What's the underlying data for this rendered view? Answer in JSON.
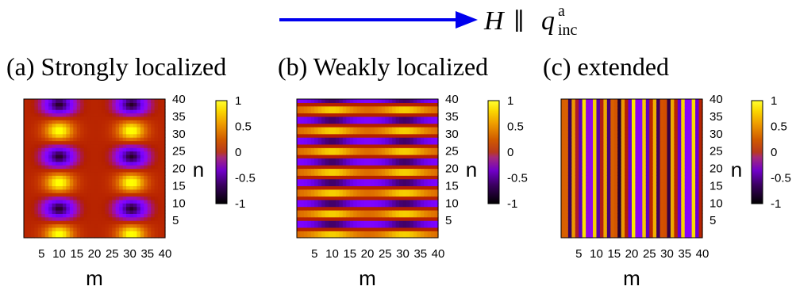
{
  "header": {
    "arrow_color": "#0000ee",
    "field_symbol": "H",
    "parallel_symbol": "∥",
    "q_symbol": "q",
    "q_superscript": "a",
    "q_subscript": "inc"
  },
  "colorbar": {
    "ticks": [
      "1",
      "0.5",
      "0",
      "-0.5",
      "-1"
    ],
    "min": -1,
    "max": 1,
    "colormap": "gnuplot-pm3d"
  },
  "panels": [
    {
      "id": "a",
      "title": "(a) Strongly localized",
      "xlabel": "m",
      "ylabel": "n",
      "xticks": [
        "5",
        "10",
        "15",
        "20",
        "25",
        "30",
        "35",
        "40"
      ],
      "yticks": [
        "40",
        "35",
        "30",
        "25",
        "20",
        "15",
        "10",
        "5"
      ],
      "pattern": "localized-strong"
    },
    {
      "id": "b",
      "title": "(b) Weakly localized",
      "xlabel": "m",
      "ylabel": "n",
      "xticks": [
        "5",
        "10",
        "15",
        "20",
        "25",
        "30",
        "35",
        "40"
      ],
      "yticks": [
        "40",
        "35",
        "30",
        "25",
        "20",
        "15",
        "10",
        "5"
      ],
      "pattern": "localized-weak"
    },
    {
      "id": "c",
      "title": "(c) extended",
      "xlabel": "m",
      "ylabel": "n",
      "xticks": [
        "5",
        "10",
        "15",
        "20",
        "25",
        "30",
        "35",
        "40"
      ],
      "yticks": [
        "40",
        "35",
        "30",
        "25",
        "20",
        "15",
        "10",
        "5"
      ],
      "pattern": "extended"
    }
  ]
}
